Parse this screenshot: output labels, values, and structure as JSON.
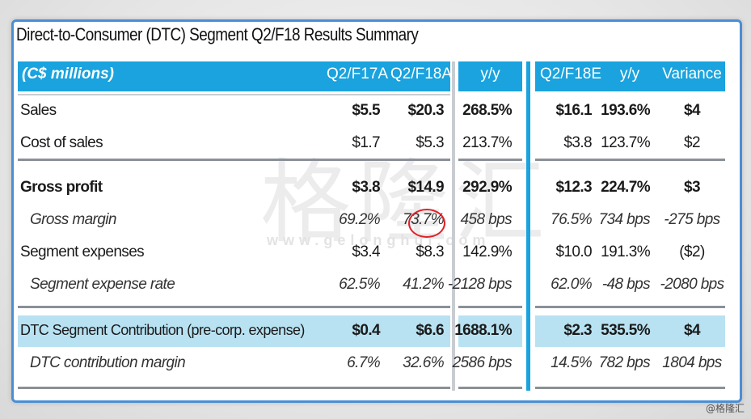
{
  "title": "Direct-to-Consumer (DTC) Segment Q2/F18 Results Summary",
  "headers": {
    "units": "(C$ millions)",
    "q2f17a": "Q2/F17A",
    "q2f18a": "Q2/F18A",
    "yy1": "y/y",
    "q2f18e": "Q2/F18E",
    "yy2": "y/y",
    "variance": "Variance"
  },
  "rows": [
    {
      "label": "Sales",
      "q2f17a": "$5.5",
      "q2f18a": "$20.3",
      "yy1": "268.5%",
      "q2f18e": "$16.1",
      "yy2": "193.6%",
      "variance": "$4"
    },
    {
      "label": "Cost of sales",
      "q2f17a": "$1.7",
      "q2f18a": "$5.3",
      "yy1": "213.7%",
      "q2f18e": "$3.8",
      "yy2": "123.7%",
      "variance": "$2"
    },
    {
      "label": "Gross profit",
      "q2f17a": "$3.8",
      "q2f18a": "$14.9",
      "yy1": "292.9%",
      "q2f18e": "$12.3",
      "yy2": "224.7%",
      "variance": "$3"
    },
    {
      "label": "Gross margin",
      "q2f17a": "69.2%",
      "q2f18a": "73.7%",
      "yy1": "458 bps",
      "q2f18e": "76.5%",
      "yy2": "734 bps",
      "variance": "-275 bps"
    },
    {
      "label": "Segment expenses",
      "q2f17a": "$3.4",
      "q2f18a": "$8.3",
      "yy1": "142.9%",
      "q2f18e": "$10.0",
      "yy2": "191.3%",
      "variance": "($2)"
    },
    {
      "label": "Segment expense rate",
      "q2f17a": "62.5%",
      "q2f18a": "41.2%",
      "yy1": "-2128 bps",
      "q2f18e": "62.0%",
      "yy2": "-48 bps",
      "variance": "-2080 bps"
    },
    {
      "label": "DTC Segment Contribution (pre-corp. expense)",
      "q2f17a": "$0.4",
      "q2f18a": "$6.6",
      "yy1": "1688.1%",
      "q2f18e": "$2.3",
      "yy2": "535.5%",
      "variance": "$4"
    },
    {
      "label": "DTC contribution margin",
      "q2f17a": "6.7%",
      "q2f18a": "32.6%",
      "yy1": "2586 bps",
      "q2f18e": "14.5%",
      "yy2": "782 bps",
      "variance": "1804 bps"
    }
  ],
  "watermark": "格隆汇",
  "watermark_url": "www.gelonghui.com",
  "credit": "@格隆汇",
  "colors": {
    "accent": "#1aa3de",
    "band": "#b8e2f2",
    "frame": "#4a8fd4",
    "highlight_circle": "#e0202a"
  }
}
